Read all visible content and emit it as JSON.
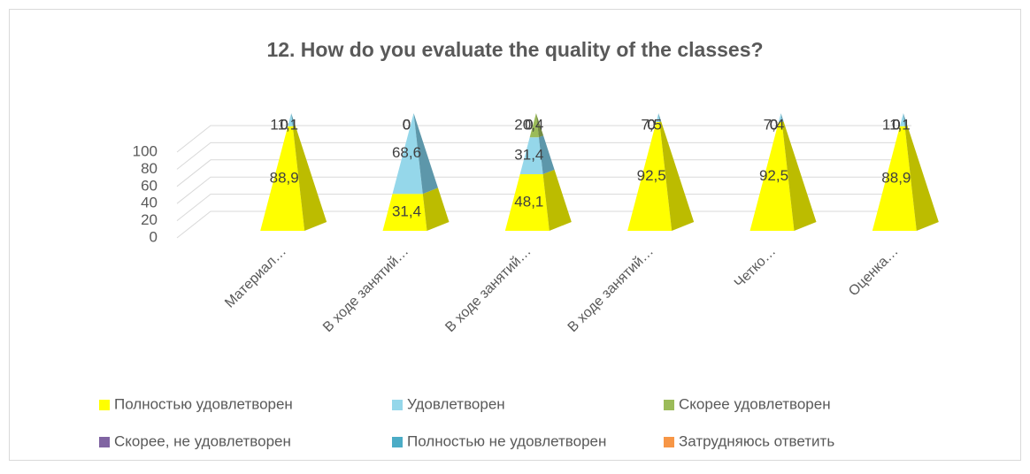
{
  "chart_data": {
    "type": "pyramid3d-stacked",
    "title": "12. How do you evaluate the quality of the classes?",
    "categories": [
      "Материал…",
      "В ходе занятий…",
      "В ходе занятий…",
      "В ходе занятий…",
      "Четко…",
      "Оценка…"
    ],
    "series": [
      {
        "name": "Полностью удовлетворен",
        "color": "#ffff00",
        "side_color": "#bcbc00",
        "values": [
          88.9,
          31.4,
          48.1,
          92.5,
          92.5,
          88.9
        ],
        "value_labels": [
          "88,9",
          "31,4",
          "48,1",
          "92,5",
          "92,5",
          "88,9"
        ]
      },
      {
        "name": "Удовлетворен",
        "color": "#95d7ea",
        "side_color": "#5d97aa",
        "values": [
          11.1,
          68.6,
          31.4,
          7.5,
          7.4,
          11.1
        ],
        "value_labels": [
          "11,1",
          "68,6",
          "31,4",
          "7,5",
          "7,4",
          "11,1"
        ]
      },
      {
        "name": "Скорее удовлетворен",
        "color": "#9bbb59",
        "side_color": "#748c42",
        "values": [
          0,
          0,
          20.4,
          0,
          0,
          0
        ],
        "value_labels": [
          "0",
          "0",
          "20,4",
          "0",
          "0",
          "0"
        ]
      },
      {
        "name": "Скорее, не удовлетворен",
        "color": "#8064a2",
        "side_color": "#5f4a79",
        "values": [
          0,
          0,
          0,
          0,
          0,
          0
        ],
        "value_labels": [
          "0",
          "0",
          "0",
          "0",
          "0",
          "0"
        ]
      },
      {
        "name": "Полностью не удовлетворен",
        "color": "#4bacc6",
        "side_color": "#388194",
        "values": [
          0,
          0,
          0,
          0,
          0,
          0
        ],
        "value_labels": [
          "0",
          "0",
          "0",
          "0",
          "0",
          "0"
        ]
      },
      {
        "name": "Затрудняюсь ответить",
        "color": "#f79646",
        "side_color": "#b97034",
        "values": [
          0,
          0,
          0,
          0,
          0,
          0
        ],
        "value_labels": [
          "0",
          "0",
          "0",
          "0",
          "0",
          "0"
        ]
      }
    ],
    "ylim": [
      0,
      100
    ],
    "yticks": [
      0,
      20,
      40,
      60,
      80,
      100
    ],
    "grid": true,
    "legend": "bottom"
  }
}
